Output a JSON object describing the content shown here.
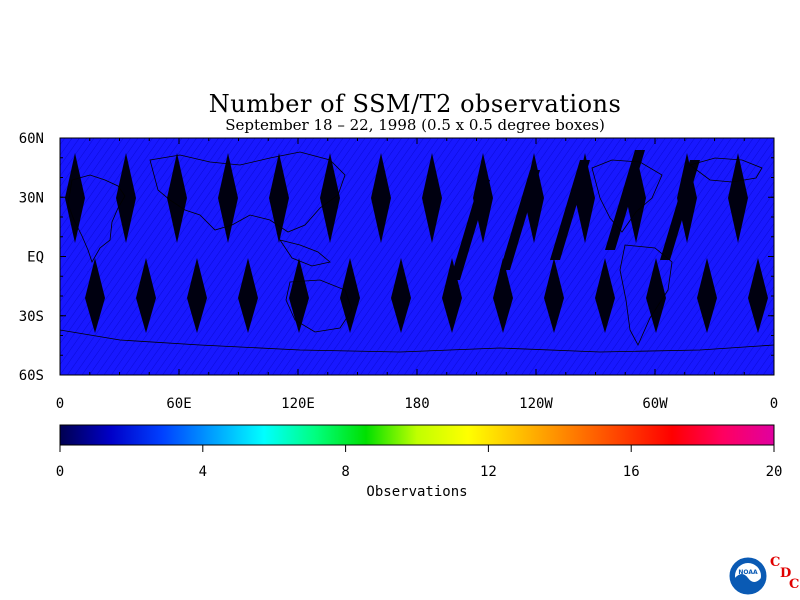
{
  "title": "Number of SSM/T2 observations",
  "subtitle": "September 18 – 22, 1998 (0.5 x 0.5 degree boxes)",
  "map": {
    "lat_labels": [
      "60N",
      "30N",
      "EQ",
      "30S",
      "60S"
    ],
    "lon_labels": [
      "0",
      "60E",
      "120E",
      "180",
      "120W",
      "60W",
      "0"
    ],
    "background_color": "#1414ff",
    "gap_color": "#000010"
  },
  "colorbar": {
    "label": "Observations",
    "tick_labels": [
      "0",
      "4",
      "8",
      "12",
      "16",
      "20"
    ],
    "range": [
      0,
      20
    ],
    "colors": [
      "#000050",
      "#0000c8",
      "#0040ff",
      "#00a0ff",
      "#00ffff",
      "#00ff80",
      "#00e000",
      "#c0ff00",
      "#ffff00",
      "#ffc000",
      "#ff8000",
      "#ff4000",
      "#ff0000",
      "#ff0060",
      "#e000a0"
    ]
  },
  "logo": {
    "name": "noaa-logo",
    "text": "NOAA",
    "letters": [
      "C",
      "D",
      "C"
    ]
  }
}
